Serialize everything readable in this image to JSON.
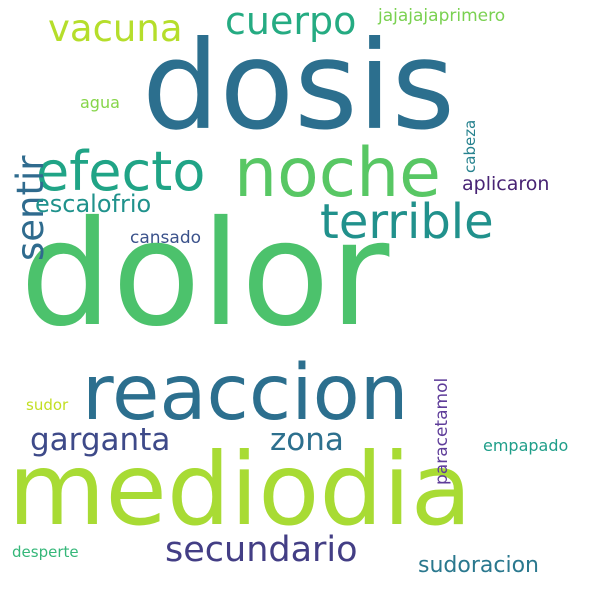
{
  "words": [
    {
      "text": "dolor",
      "color": "#4cc26c",
      "rotated": false
    },
    {
      "text": "dosis",
      "color": "#2c6f8e",
      "rotated": false
    },
    {
      "text": "mediodia",
      "color": "#a8db34",
      "rotated": false
    },
    {
      "text": "reaccion",
      "color": "#2c6f8e",
      "rotated": false
    },
    {
      "text": "noche",
      "color": "#58c764",
      "rotated": false
    },
    {
      "text": "efecto",
      "color": "#20a486",
      "rotated": false
    },
    {
      "text": "terrible",
      "color": "#21918c",
      "rotated": false
    },
    {
      "text": "cuerpo",
      "color": "#25ab82",
      "rotated": false
    },
    {
      "text": "vacuna",
      "color": "#b5de2b",
      "rotated": false
    },
    {
      "text": "sentir",
      "color": "#2f6b8e",
      "rotated": true
    },
    {
      "text": "secundario",
      "color": "#433e85",
      "rotated": false
    },
    {
      "text": "garganta",
      "color": "#3e4a89",
      "rotated": false
    },
    {
      "text": "zona",
      "color": "#2d708e",
      "rotated": false
    },
    {
      "text": "escalofrio",
      "color": "#20928c",
      "rotated": false
    },
    {
      "text": "sudoracion",
      "color": "#2a788e",
      "rotated": false
    },
    {
      "text": "aplicaron",
      "color": "#482374",
      "rotated": false
    },
    {
      "text": "jajajajaprimero",
      "color": "#7ad151",
      "rotated": false
    },
    {
      "text": "cansado",
      "color": "#3b528b",
      "rotated": false
    },
    {
      "text": "paracetamol",
      "color": "#5e3c99",
      "rotated": true
    },
    {
      "text": "empapado",
      "color": "#1f9e89",
      "rotated": false
    },
    {
      "text": "agua",
      "color": "#86d549",
      "rotated": false
    },
    {
      "text": "cabeza",
      "color": "#26828e",
      "rotated": true
    },
    {
      "text": "desperte",
      "color": "#35b779",
      "rotated": false
    },
    {
      "text": "sudor",
      "color": "#c2df23",
      "rotated": false
    }
  ]
}
